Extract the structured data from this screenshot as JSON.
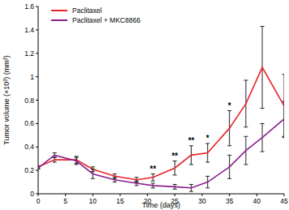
{
  "chart_data": {
    "type": "line",
    "x_label": "Time (days)",
    "y_label": "Tumor volume (×10³) (mm³)",
    "x": [
      0,
      3,
      7,
      10,
      14,
      18,
      21,
      25,
      28,
      31,
      35,
      38,
      41,
      45
    ],
    "series": [
      {
        "name": "Paclitaxel",
        "color": "#e8242b",
        "values": [
          0.23,
          0.29,
          0.29,
          0.21,
          0.15,
          0.12,
          0.14,
          0.22,
          0.33,
          0.35,
          0.56,
          0.77,
          1.08,
          0.75
        ],
        "errors": [
          0.01,
          0.02,
          0.03,
          0.02,
          0.02,
          0.02,
          0.03,
          0.06,
          0.08,
          0.08,
          0.15,
          0.2,
          0.35,
          0.27
        ]
      },
      {
        "name": "Paclitaxel + MKC8866",
        "color": "#8b1f8f",
        "values": [
          0.22,
          0.33,
          0.28,
          0.17,
          0.12,
          0.09,
          0.07,
          0.06,
          0.05,
          0.1,
          0.23,
          0.37,
          0.48,
          0.64
        ],
        "errors": [
          0.01,
          0.02,
          0.03,
          0.04,
          0.02,
          0.02,
          0.02,
          0.02,
          0.03,
          0.05,
          0.1,
          0.12,
          0.12,
          0.15
        ]
      }
    ],
    "annotations": [
      {
        "text": "**",
        "x": 21,
        "y": 0.19
      },
      {
        "text": "**",
        "x": 25,
        "y": 0.3
      },
      {
        "text": "**",
        "x": 28,
        "y": 0.43
      },
      {
        "text": "*",
        "x": 31,
        "y": 0.45
      },
      {
        "text": "*",
        "x": 35,
        "y": 0.73
      }
    ],
    "xlim": [
      0,
      45
    ],
    "ylim": [
      0,
      1.6
    ],
    "xticks": [
      0,
      5,
      10,
      15,
      20,
      25,
      30,
      35,
      40,
      45
    ],
    "yticks": [
      0,
      0.2,
      0.4,
      0.6,
      0.8,
      1.0,
      1.2,
      1.4,
      1.6
    ],
    "legend": "upper left",
    "grid": false
  }
}
